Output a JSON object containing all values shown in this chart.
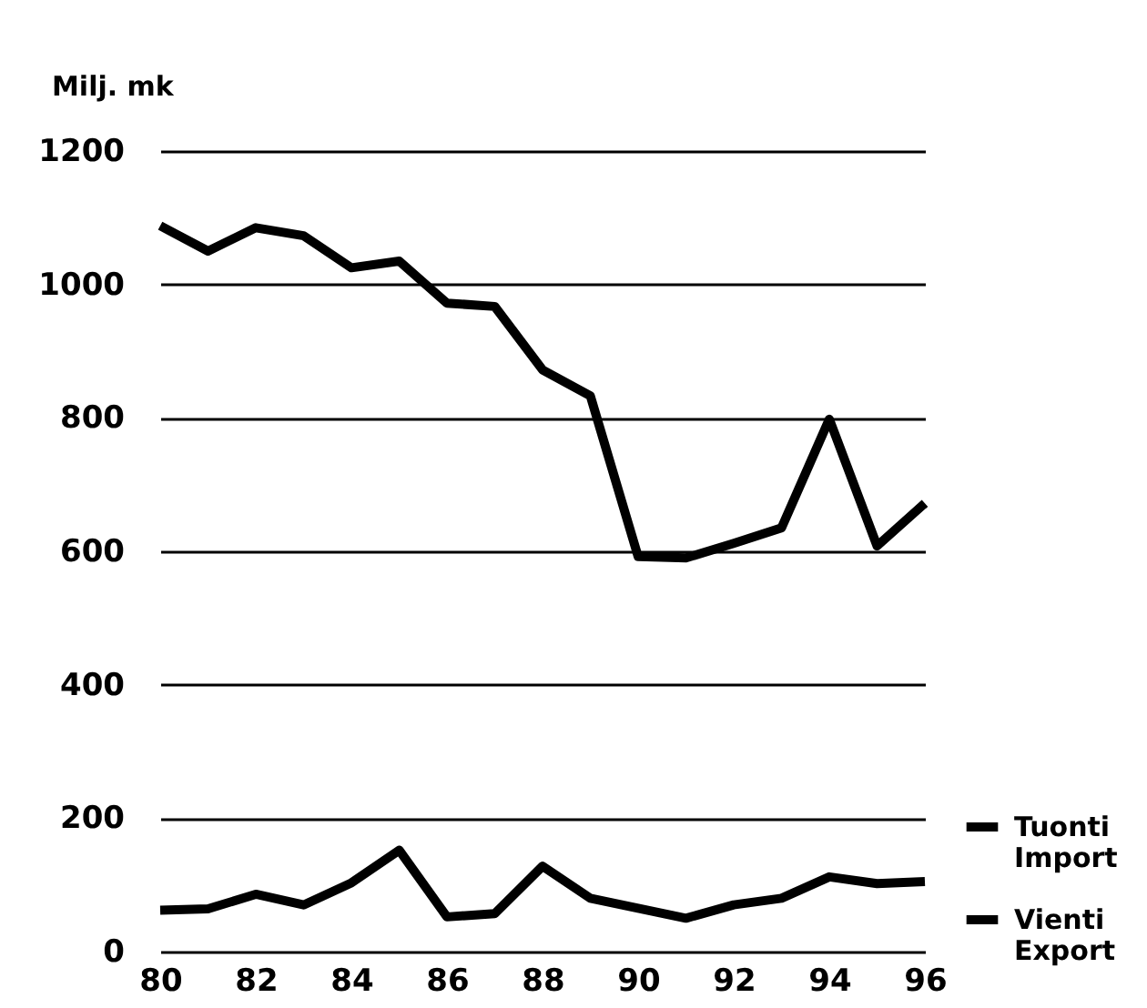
{
  "chart_data": {
    "type": "line",
    "ylabel": "Milj. mk",
    "x": [
      80,
      81,
      82,
      83,
      84,
      85,
      86,
      87,
      88,
      89,
      90,
      91,
      92,
      93,
      94,
      95,
      96
    ],
    "series": [
      {
        "name": "Tuonti\nImport",
        "color": "#000000",
        "values": [
          1088,
          1050,
          1085,
          1073,
          1025,
          1035,
          972,
          967,
          872,
          833,
          592,
          590,
          612,
          635,
          798,
          608,
          672
        ]
      },
      {
        "name": "Vienti\nExport",
        "color": "#000000",
        "values": [
          62,
          64,
          86,
          70,
          103,
          152,
          52,
          57,
          128,
          80,
          65,
          50,
          70,
          80,
          112,
          102,
          105
        ]
      }
    ],
    "xlim": [
      80,
      96
    ],
    "xticks": [
      80,
      82,
      84,
      86,
      88,
      90,
      92,
      94,
      96
    ],
    "ylim": [
      0,
      1200
    ],
    "yticks": [
      0,
      200,
      400,
      600,
      800,
      1000,
      1200
    ],
    "grid": "y",
    "legend": "bottom right",
    "marker": "none",
    "line_style": "solid"
  }
}
